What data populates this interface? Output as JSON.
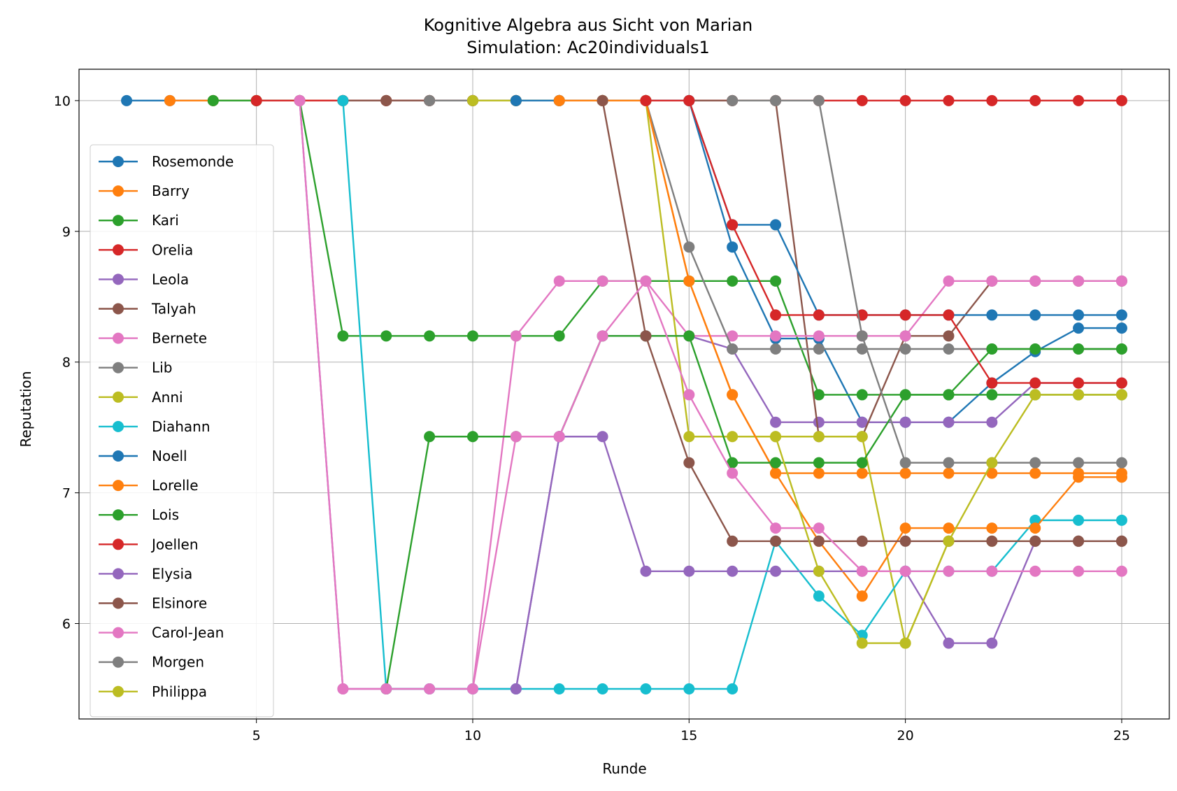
{
  "chart_data": {
    "type": "line",
    "title": "Kognitive Algebra aus Sicht von Marian",
    "subtitle": "Simulation: Ac20individuals1",
    "xlabel": "Runde",
    "ylabel": "Reputation",
    "xlim": [
      0.9,
      26.1
    ],
    "ylim": [
      5.27,
      10.24
    ],
    "xticks": [
      5,
      10,
      15,
      20,
      25
    ],
    "yticks": [
      6,
      7,
      8,
      9,
      10
    ],
    "grid": true,
    "legend_position": "center-left",
    "series": [
      {
        "name": "Rosemonde",
        "color": "#1f77b4",
        "x": [
          2,
          3,
          4,
          5,
          6,
          7,
          8,
          9,
          10,
          11,
          12,
          13,
          14,
          15,
          16,
          17,
          18,
          19,
          20,
          21,
          22,
          23,
          24,
          25
        ],
        "y": [
          10,
          10,
          10,
          10,
          10,
          10,
          10,
          10,
          10,
          10,
          10,
          10,
          10,
          10,
          8.88,
          8.18,
          8.18,
          7.54,
          7.54,
          7.54,
          7.84,
          8.08,
          8.26,
          8.26
        ]
      },
      {
        "name": "Barry",
        "color": "#ff7f0e",
        "x": [
          3,
          4,
          5,
          6,
          7,
          8,
          9,
          10,
          11,
          12,
          13,
          14,
          15,
          16,
          17,
          18,
          19,
          20,
          21,
          22,
          23,
          24,
          25
        ],
        "y": [
          10,
          10,
          10,
          10,
          10,
          10,
          10,
          10,
          10,
          10,
          10,
          10,
          8.62,
          7.75,
          7.15,
          7.15,
          7.15,
          7.15,
          7.15,
          7.15,
          7.15,
          7.15,
          7.15
        ]
      },
      {
        "name": "Kari",
        "color": "#2ca02c",
        "x": [
          4,
          5,
          6,
          7,
          8,
          9,
          10,
          11,
          12,
          13,
          14,
          15,
          16,
          17,
          18,
          19,
          20,
          21,
          22,
          23,
          24,
          25
        ],
        "y": [
          10,
          10,
          10,
          8.2,
          8.2,
          8.2,
          8.2,
          8.2,
          8.2,
          8.62,
          8.62,
          8.62,
          8.62,
          8.62,
          7.75,
          7.75,
          7.75,
          7.75,
          7.75,
          7.75,
          7.75,
          7.75
        ]
      },
      {
        "name": "Orelia",
        "color": "#d62728",
        "x": [
          5,
          6,
          7,
          8,
          9,
          10,
          11,
          12,
          13,
          14,
          15,
          16,
          17,
          18,
          19,
          20,
          21,
          22,
          23,
          24,
          25
        ],
        "y": [
          10,
          10,
          10,
          10,
          10,
          10,
          10,
          10,
          10,
          10,
          10,
          10,
          10,
          10,
          10,
          10,
          10,
          10,
          10,
          10,
          10
        ]
      },
      {
        "name": "Leola",
        "color": "#9467bd",
        "x": [
          6,
          7,
          8,
          9,
          10,
          11,
          12,
          13,
          14,
          15,
          16,
          17,
          18,
          19,
          20,
          21,
          22,
          23,
          24,
          25
        ],
        "y": [
          10,
          5.5,
          5.5,
          5.5,
          5.5,
          5.5,
          7.43,
          8.2,
          8.2,
          8.2,
          8.1,
          7.54,
          7.54,
          7.54,
          7.54,
          7.54,
          7.54,
          7.84,
          7.84,
          7.84
        ]
      },
      {
        "name": "Talyah",
        "color": "#8c564b",
        "x": [
          7,
          8,
          9,
          10,
          11,
          12,
          13,
          14,
          15,
          16,
          17,
          18,
          19,
          20,
          21,
          22,
          23,
          24,
          25
        ],
        "y": [
          10,
          10,
          10,
          10,
          10,
          10,
          10,
          10,
          10,
          10,
          10,
          7.43,
          7.43,
          8.2,
          8.2,
          8.62,
          8.62,
          8.62,
          8.62
        ]
      },
      {
        "name": "Bernete",
        "color": "#e377c2",
        "x": [
          8,
          9,
          10,
          11,
          12,
          13,
          14,
          15,
          16,
          17,
          18,
          19,
          20,
          21,
          22,
          23,
          24,
          25
        ],
        "y": [
          5.5,
          5.5,
          5.5,
          8.2,
          8.62,
          8.62,
          8.62,
          8.2,
          8.2,
          8.2,
          8.2,
          8.2,
          8.2,
          8.62,
          8.62,
          8.62,
          8.62,
          8.62
        ]
      },
      {
        "name": "Lib",
        "color": "#7f7f7f",
        "x": [
          9,
          10,
          11,
          12,
          13,
          14,
          15,
          16,
          17,
          18,
          19,
          20,
          21,
          22,
          23,
          24,
          25
        ],
        "y": [
          10,
          10,
          10,
          10,
          10,
          10,
          8.88,
          8.1,
          8.1,
          8.1,
          8.1,
          8.1,
          8.1,
          8.1,
          8.1,
          8.1,
          8.1
        ]
      },
      {
        "name": "Anni",
        "color": "#bcbd22",
        "x": [
          10,
          11,
          12,
          13,
          14,
          15,
          16,
          17,
          18,
          19,
          20,
          21,
          22,
          23,
          24,
          25
        ],
        "y": [
          10,
          10,
          10,
          10,
          10,
          7.43,
          7.43,
          7.43,
          7.43,
          7.43,
          5.85,
          6.63,
          6.63,
          6.63,
          6.63,
          6.63
        ]
      },
      {
        "name": "Diahann",
        "color": "#17becf",
        "x": [
          7,
          8,
          9,
          10,
          11,
          12,
          13,
          14,
          15,
          16,
          17,
          18,
          19,
          20,
          21,
          22,
          23,
          24,
          25
        ],
        "y": [
          10,
          5.5,
          5.5,
          5.5,
          5.5,
          5.5,
          5.5,
          5.5,
          5.5,
          5.5,
          6.63,
          6.21,
          5.91,
          6.4,
          6.4,
          6.4,
          6.79,
          6.79,
          6.79
        ]
      },
      {
        "name": "Noell",
        "color": "#1f77b4",
        "x": [
          11,
          12,
          13,
          14,
          15,
          16,
          17,
          18,
          19,
          20,
          21,
          22,
          23,
          24,
          25
        ],
        "y": [
          10,
          10,
          10,
          10,
          10,
          9.05,
          9.05,
          8.36,
          8.36,
          8.36,
          8.36,
          8.36,
          8.36,
          8.36,
          8.36
        ]
      },
      {
        "name": "Lorelle",
        "color": "#ff7f0e",
        "x": [
          12,
          13,
          14,
          15,
          16,
          17,
          18,
          19,
          20,
          21,
          22,
          23,
          24,
          25
        ],
        "y": [
          10,
          10,
          10,
          8.62,
          7.75,
          7.15,
          6.63,
          6.21,
          6.73,
          6.73,
          6.73,
          6.73,
          7.12,
          7.12
        ]
      },
      {
        "name": "Lois",
        "color": "#2ca02c",
        "x": [
          8,
          9,
          10,
          11,
          12,
          13,
          14,
          15,
          16,
          17,
          18,
          19,
          20,
          21,
          22,
          23,
          24,
          25
        ],
        "y": [
          5.5,
          7.43,
          7.43,
          7.43,
          7.43,
          8.2,
          8.2,
          8.2,
          7.23,
          7.23,
          7.23,
          7.23,
          7.75,
          7.75,
          8.1,
          8.1,
          8.1,
          8.1
        ]
      },
      {
        "name": "Joellen",
        "color": "#d62728",
        "x": [
          14,
          15,
          16,
          17,
          18,
          19,
          20,
          21,
          22,
          23,
          24,
          25
        ],
        "y": [
          10,
          10,
          9.05,
          8.36,
          8.36,
          8.36,
          8.36,
          8.36,
          7.84,
          7.84,
          7.84,
          7.84
        ]
      },
      {
        "name": "Elysia",
        "color": "#9467bd",
        "x": [
          11,
          12,
          13,
          14,
          15,
          16,
          17,
          18,
          19,
          20,
          21,
          22,
          23,
          24,
          25
        ],
        "y": [
          5.5,
          7.43,
          7.43,
          6.4,
          6.4,
          6.4,
          6.4,
          6.4,
          6.4,
          6.4,
          5.85,
          5.85,
          6.63,
          6.63,
          6.63
        ]
      },
      {
        "name": "Elsinore",
        "color": "#8c564b",
        "x": [
          13,
          14,
          15,
          16,
          17,
          18,
          19,
          20,
          21,
          22,
          23,
          24,
          25
        ],
        "y": [
          10,
          8.2,
          7.23,
          6.63,
          6.63,
          6.63,
          6.63,
          6.63,
          6.63,
          6.63,
          6.63,
          6.63,
          6.63
        ]
      },
      {
        "name": "Carol-Jean",
        "color": "#e377c2",
        "x": [
          6,
          7,
          8,
          9,
          10,
          11,
          12,
          13,
          14,
          15,
          16,
          17,
          18,
          19,
          20,
          21,
          22,
          23,
          24,
          25
        ],
        "y": [
          10,
          5.5,
          5.5,
          5.5,
          5.5,
          7.43,
          7.43,
          8.2,
          8.62,
          7.75,
          7.15,
          6.73,
          6.73,
          6.4,
          6.4,
          6.4,
          6.4,
          6.4,
          6.4,
          6.4
        ]
      },
      {
        "name": "Morgen",
        "color": "#7f7f7f",
        "x": [
          16,
          17,
          18,
          19,
          20,
          21,
          22,
          23,
          24,
          25
        ],
        "y": [
          10,
          10,
          10,
          8.2,
          7.23,
          7.23,
          7.23,
          7.23,
          7.23,
          7.23
        ]
      },
      {
        "name": "Philippa",
        "color": "#bcbd22",
        "x": [
          17,
          18,
          19,
          20,
          21,
          22,
          23,
          24,
          25
        ],
        "y": [
          7.43,
          6.4,
          5.85,
          5.85,
          6.63,
          7.23,
          7.75,
          7.75,
          7.75
        ]
      }
    ]
  }
}
